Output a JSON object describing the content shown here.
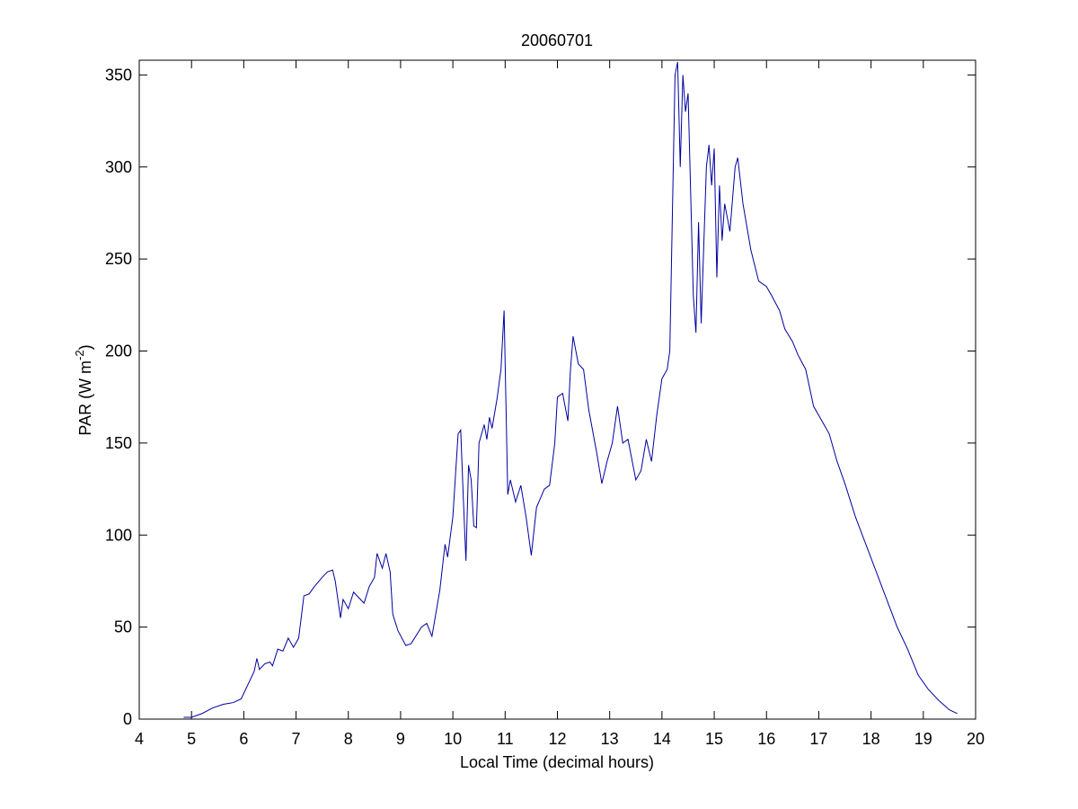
{
  "chart_data": {
    "type": "line",
    "title": "20060701",
    "xlabel": "Local Time (decimal hours)",
    "ylabel": [
      "PAR (W m",
      "-2",
      ")"
    ],
    "xlim": [
      4,
      20
    ],
    "ylim": [
      0,
      358
    ],
    "xticks": [
      4,
      5,
      6,
      7,
      8,
      9,
      10,
      11,
      12,
      13,
      14,
      15,
      16,
      17,
      18,
      19,
      20
    ],
    "yticks": [
      0,
      50,
      100,
      150,
      200,
      250,
      300,
      350
    ],
    "grid": false,
    "series": [
      {
        "color": "#0000a0",
        "x": [
          4.85,
          5.0,
          5.2,
          5.4,
          5.6,
          5.8,
          5.95,
          6.1,
          6.2,
          6.25,
          6.3,
          6.4,
          6.5,
          6.55,
          6.65,
          6.75,
          6.85,
          6.95,
          7.05,
          7.15,
          7.25,
          7.35,
          7.5,
          7.6,
          7.7,
          7.75,
          7.85,
          7.9,
          8.0,
          8.1,
          8.2,
          8.3,
          8.4,
          8.5,
          8.55,
          8.65,
          8.72,
          8.8,
          8.85,
          8.95,
          9.1,
          9.2,
          9.4,
          9.5,
          9.6,
          9.75,
          9.85,
          9.9,
          10.0,
          10.1,
          10.15,
          10.2,
          10.25,
          10.3,
          10.35,
          10.4,
          10.45,
          10.5,
          10.6,
          10.65,
          10.7,
          10.75,
          10.85,
          10.92,
          10.98,
          11.05,
          11.1,
          11.2,
          11.3,
          11.4,
          11.5,
          11.6,
          11.75,
          11.85,
          11.95,
          12.0,
          12.1,
          12.2,
          12.25,
          12.3,
          12.4,
          12.5,
          12.6,
          12.75,
          12.85,
          12.95,
          13.05,
          13.15,
          13.25,
          13.35,
          13.5,
          13.6,
          13.7,
          13.8,
          13.9,
          14.0,
          14.1,
          14.15,
          14.25,
          14.3,
          14.35,
          14.4,
          14.45,
          14.5,
          14.55,
          14.6,
          14.65,
          14.7,
          14.75,
          14.85,
          14.9,
          14.95,
          15.0,
          15.05,
          15.1,
          15.15,
          15.2,
          15.3,
          15.4,
          15.45,
          15.55,
          15.7,
          15.85,
          16.0,
          16.1,
          16.25,
          16.35,
          16.5,
          16.6,
          16.75,
          16.9,
          17.1,
          17.2,
          17.35,
          17.5,
          17.7,
          17.9,
          18.1,
          18.3,
          18.5,
          18.7,
          18.9,
          19.1,
          19.3,
          19.5,
          19.65
        ],
        "values": [
          1,
          1,
          3,
          6,
          8,
          9,
          11,
          20,
          26,
          33,
          27,
          30,
          31,
          29,
          38,
          37,
          44,
          39,
          44,
          67,
          68,
          72,
          77,
          80,
          81,
          75,
          55,
          65,
          60,
          69,
          66,
          63,
          72,
          77,
          90,
          82,
          90,
          80,
          57,
          48,
          40,
          41,
          50,
          52,
          45,
          70,
          95,
          88,
          110,
          155,
          157,
          120,
          86,
          138,
          130,
          105,
          104,
          150,
          160,
          152,
          164,
          158,
          175,
          190,
          222,
          122,
          130,
          118,
          127,
          110,
          89,
          115,
          125,
          127,
          150,
          175,
          177,
          162,
          190,
          208,
          193,
          190,
          168,
          145,
          128,
          140,
          150,
          170,
          150,
          152,
          130,
          135,
          152,
          140,
          165,
          185,
          190,
          200,
          350,
          357,
          300,
          350,
          330,
          340,
          285,
          230,
          210,
          270,
          215,
          300,
          312,
          290,
          310,
          240,
          290,
          260,
          280,
          265,
          300,
          305,
          280,
          255,
          238,
          235,
          230,
          222,
          212,
          205,
          198,
          190,
          170,
          160,
          155,
          140,
          128,
          110,
          95,
          80,
          65,
          50,
          38,
          24,
          16,
          10,
          5,
          3
        ]
      }
    ]
  }
}
